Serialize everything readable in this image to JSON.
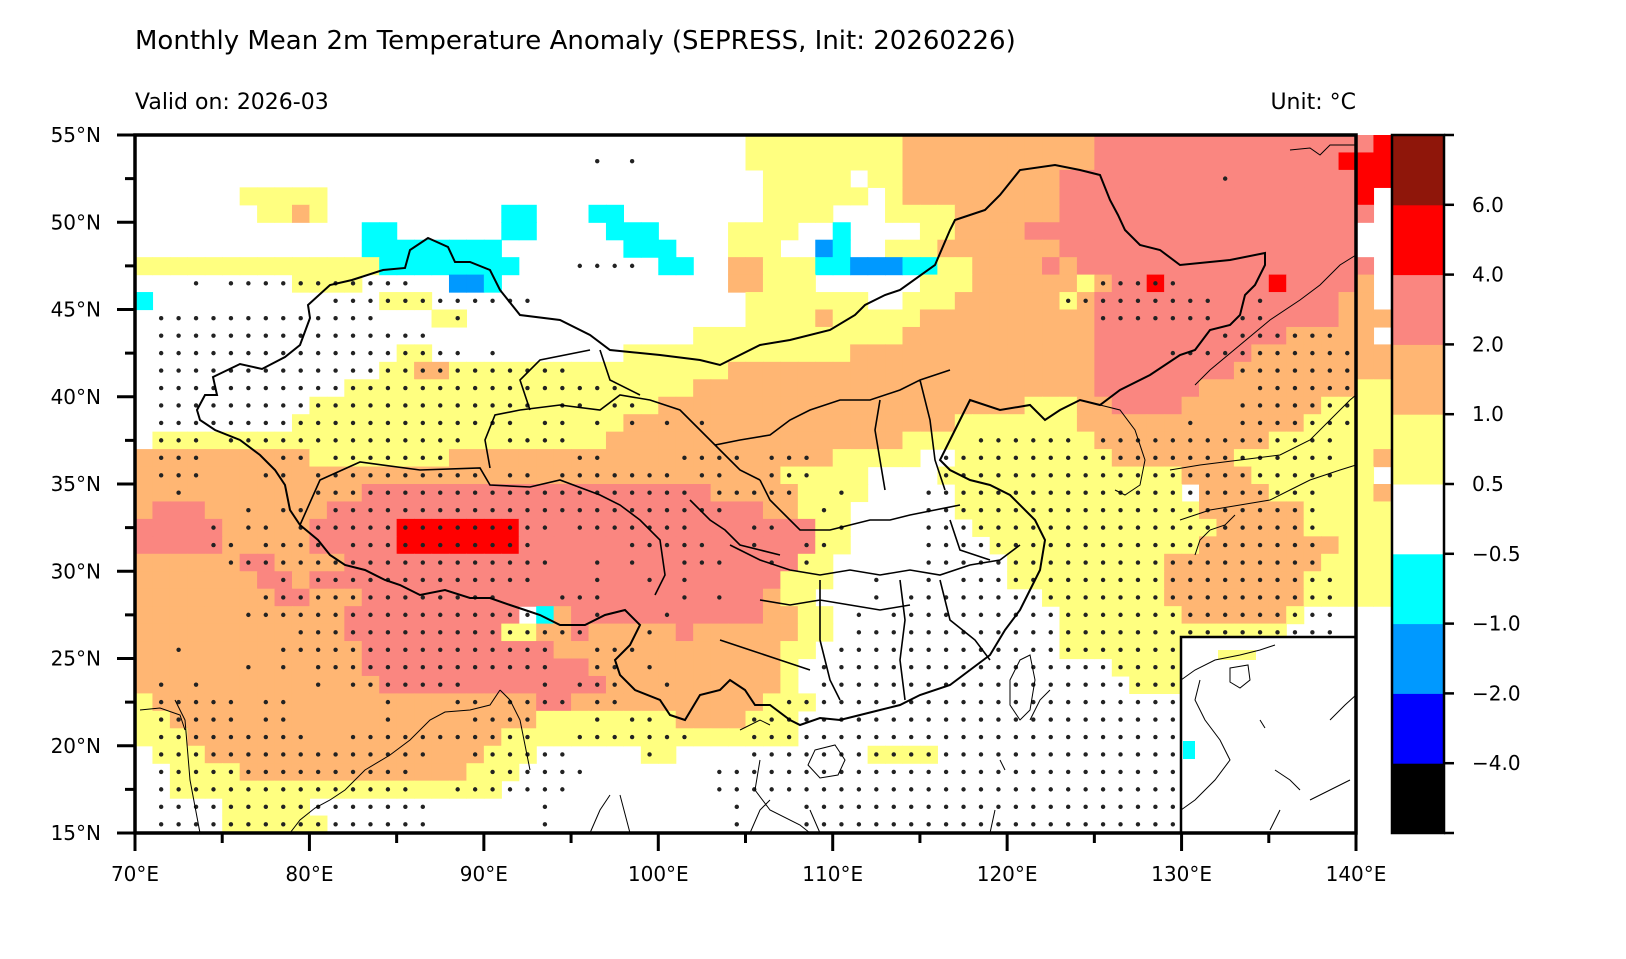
{
  "chart_data": {
    "type": "heatmap",
    "title": "Monthly Mean 2m Temperature Anomaly (SEPRESS, Init: 20260226)",
    "subtitle_left": "Valid on: 2026-03",
    "subtitle_right": "Unit: °C",
    "xlabel": "",
    "ylabel": "",
    "xlim": [
      70,
      140
    ],
    "ylim": [
      15,
      55
    ],
    "x_ticks": [
      70,
      80,
      90,
      100,
      110,
      120,
      130,
      140
    ],
    "x_tick_labels": [
      "70°E",
      "80°E",
      "90°E",
      "100°E",
      "110°E",
      "120°E",
      "130°E",
      "140°E"
    ],
    "y_ticks": [
      55,
      50,
      45,
      40,
      35,
      30,
      25,
      20,
      15
    ],
    "y_tick_labels": [
      "55°N",
      "50°N",
      "45°N",
      "40°N",
      "35°N",
      "30°N",
      "25°N",
      "20°N",
      "15°N"
    ],
    "grid": false,
    "colorbar": {
      "position": "right",
      "levels": [
        {
          "code": "k",
          "range": "< -4.0",
          "color": "#000000"
        },
        {
          "code": "n",
          "range": "-4.0 to -2.0",
          "color": "#0000ff"
        },
        {
          "code": "b",
          "range": "-2.0 to -1.0",
          "color": "#0099ff"
        },
        {
          "code": "c",
          "range": "-1.0 to -0.5",
          "color": "#00ffff"
        },
        {
          "code": "w",
          "range": "-0.5 to 0.5",
          "color": "#ffffff"
        },
        {
          "code": "y",
          "range": "0.5 to 1.0",
          "color": "#ffff80"
        },
        {
          "code": "o",
          "range": "1.0 to 2.0",
          "color": "#ffb673"
        },
        {
          "code": "p",
          "range": "2.0 to 4.0",
          "color": "#fa8680"
        },
        {
          "code": "r",
          "range": "4.0 to 6.0",
          "color": "#ff0000"
        },
        {
          "code": "d",
          "range": "> 6.0",
          "color": "#8f160a"
        }
      ],
      "tick_labels": [
        "−4.0",
        "−2.0",
        "−1.0",
        "−0.5",
        "0.5",
        "1.0",
        "2.0",
        "4.0",
        "6.0"
      ]
    },
    "grid_spec": {
      "lon_start": 70,
      "lat_start": 55,
      "step_deg": 1,
      "note": "rows from 55N southward, cols from 70E eastward; each char is a level code"
    },
    "cells": [
      "wwwwwwwwwwwwwwwwwwwwwwwwwwwwwwwwwwwyyyyyyyyyoooooooooooppppppppppppppppr",
      "wwwwwwwwwwwwwwwwwwwwwwwwwwwwwwwwwwwyyyyyyyyyooooooooooopppppppppppppprrr",
      "wwwwwwwwwwwwwwwwwwwwwwwwwwwwwwwwwwwwyyyyywyyoooooooooppppppppppppppppprr",
      "wwwwwwyyyyywwwwwwwwwwwwwwwwwwwwwwwwwyyyyyywyooooooooopppppppppppppppppr",
      "wwwwwwwyyoywwwwwwwwwwccwwwccwwwwwwwwyyyywwwyyyyoooooopppppppppppppppppp",
      "wwwwwwwwwwwwwccwwwwwwccwwwwcccwwwwyyyywwcwwwwyyooooppppppppppppppppppp",
      "wwwwwwwwwwwwwccccccccwwwwwwwcccwwwyyywwbcwwyyyoooooooppppppppppppppppp",
      "yyyyyyyyyyyyyyccccccccwwwwwwwwccwwooyyyccbbbccyyoooopoppppppppppppppppp",
      "wwwwwwwwwyyyywwwwwbbcwwwwwwwwwwwwwooyyywwwwwwyyyooooooyopprpppppprppppo",
      "cwwwwwwwwwwwwwyyywwwwwwwwwwwwwwwwwwyyyyyyywwyyyooooooyoppppppppppppppoo",
      "wwwwwwwwwwwwwwwwwyywwwwwwwwwwwwwwwwyyyyoyyyyyooooooooooppppppppppppppooo",
      "wwwwwwwwwwwwwwwwwwwwwwwwwwwwwwwwyyyyyyyyyyyyooooooooooopppppppppppooooo",
      "wwwwwwwwwwwwwwwyywwwwwwwwwwwyyyyyyyyyyyyyoooooooooooooopppppppppoooooooo",
      "wwwwwwwwwwwwwwyyooyyyyyyyyyyyyyyyyoooooooooooooooooooooppppppppooooooooo",
      "wwwwwwwwwwwwyyyyyyyyyyyyyyyyyyyyoooooooooooooooooooooooppppppoooooooooyy",
      "wwwwwwwwwwyyyyyyyyyyyyyyyyyyyyoooooooooooooooooooooyyyooppppooooooooyyyy",
      "wwwwwwwwwyyyyyyyyyyyyyyyyyyyoooooooooooooooooooyyyyyyyoooooooooooooyyyyy",
      "wyyyyyyyyyyyyyyyyyyyyyyyyyyoooooooooooooooooyyyyyyyyyyyooooooooooyyyyyyy",
      "ooooooooooyyyyyyyyooooooooooooooooooooooyyyyywwyyyyyyyyyoooooooyyyyyyyyo",
      "oooooooooooooooooooooooooooooooooooooyyyyywwwwyyyyyyyyyyyyyyooooyyyyyyy",
      "oooooooooooooppppppppppppppppppppoooooyyyywwwwwyyyyyyyyyyyyywooooyyyyyyo",
      "opppooooooopppppppppppppppppppppppppooyyywwwwwwyyyyyyyyyyyyyyooooooyyyyy",
      "pppppoooooppppprrrrrrrpppppppppppppppppyywwwwwwwyyyyyyyyyyyyyyoooooyyyyy",
      "pppppoooooppppprrrrrrrpppppppppppppppppyywwwwwwwwyyyyyyyyyyyyooooooooyyy",
      "ooooooppooooppppppppppppppppppppppppppyywwwwwwwwwwyyyyyyyyyoooooooooyyyy",
      "oooooooppopppppppppppppppppppppppppppyyywwwwwwwwwwyyyyyyyyyooooooooyyyyy",
      "ooooooooppooopppppppppppppppppppppppoyywwwwwwwwwwwwwyyyyyyyooooooooyyyyy",
      "ooooooooooooppppppppppwcopppppppppppooyywwwwwwwwwwwwwyyyyyyyooooooywwwww",
      "oooooooooooopppppppppyyoopooooopooooooyywwwwwwwwwwwwwyyyyyyyyyyyyywwwwww",
      "ooooooooooooopppppppppppoooooooooooooyywwwwwwwwwwwwwwyyyyyyyyyyywwwwwwww",
      "ooooooooooooopppppppppppppoooooooooooywwwwwwwwwwwwwwwwwwyyyyyyywwwwwwwww",
      "oooooooooooooopppppppppppppooooooooooywwwwwwwwwwwwwwwwwwwyyyywwwwwwwwwww",
      "yooooooooooooooooooooooppoooooooooooyyywwwwwwwwwwwwwwwwwwwwwwwwwwwwwwwww",
      "yyoooooooooooooooooooooyyyyyyyyooooyyywwwwwwwwwwwwwwwwwwwwwwwwwwwwwwwwww",
      "yyyooooooooooooooooooyyyyyyyyyyyyyyyyywwwwwwwwwwwwwwwwwwwwwwwwwwwwwwwwww",
      "wyyyooooooooooooooooyyywwwwwwyywwwwwwwwwwwyyyywwwwwwwwwwwwwwwwcwwwwwwwww",
      "wwyyyyoooooooooooooyyywwwwwwwwwwwwwwwwwwwwwwwwwwwwwwwwwwwwwwwwwwwwwwwwww",
      "wwyyyyyyyyyyyyyyyyyyywwwwwwwwwwwwwwwwwwwwwwwwwwwwwwwwwwwwwwwwwwwwwwwwwww",
      "wwwwwyyyyywwwwwwwwwwwwwwwwwwwwwwwwwwwwwwwwwwwwwwwwwwwwwwwwwwwwwwwwwwwwww",
      "wwwwwyyyyyywwwwwwwwwwwwwwwwwwwwwwwwwwwwwwwwwwwwwwwwwwwwwwwwwwwwwwwwwwwww"
    ],
    "stipple_note": "dots mark statistically significant grid points",
    "stipple": [
      "......................................................................",
      "..........................x.x.........................................",
      "..............................................................x.......",
      "......................................................................",
      "......................................................................",
      "......................................................................",
      "......................................................................",
      ".........................xxxx.........................................",
      "...x.xxxxxxxxxxx.......................................xxxxx..........",
      "...........xxxxxxxxxxxx..............................xxxxxxxxx..x......",
      ".xxxxxxxxxxxxx....x....................................xxxxxxx.xx......",
      ".xxxxxxxxxxxxxxxx.............................................xxxxxxx.",
      ".xxxxxxxxxxxxxxxxxx.x......................................xxxxxxxxxxx",
      ".xxxxxxxxxxxxxxxxxxxxxxxx......................................xxxxxxx",
      ".xxxxxxxxxxxxxxxxxxxxxxxxxxx....................................xxxxxx",
      ".xxxxxxxxxxxxxxxxxxxxxx.xx.xx..................................xxxxxxx",
      ".xxxxxxxxxxxxxxxxxxxxx.xx.x.x.x.x...........................x..xxxxxxx",
      ".xxx.xxxxxxxxxxxxxx..xxxx.......................xxxxxx.xxxxxxxxxxxxxx",
      ".xxx....xx.xxxxxxx.......xx....xxxx.xxx.......xxxxxxxxxxxxxxxxxxxxxxx",
      ".xxx...xx.xxxxxxxxxx.xx.xxxxxxx.xx..xxx.......xxxxxxxxxxxxxxxxxxxxxxx",
      "..x.......xxxxxxxxxxxxxxxxxxxxxx.xxxxx..x....xxxxxxxxxxxxxxxxxxxxxxx",
      "......x.xx.xxxxxxxxxxxxxxxxxxxxxxx.....x.....xxxxxxxxxxxxxxxxxxxxxxx",
      "....x.xx.xxxxxxxxxxxxxxx.xxxxxxx...xx...x....xxxxxxxxxxxxxxxxxxxxxxx",
      "....xx.xxxx.xxxxxxxxxxx.....xxxxx..x..xx.....xxxxxxxxxxxxxxxxxxxxxxx",
      ".....xxxxxxxxxxxxxxxxxxx..x.x..xxx..x.x......xxxxxxxxxxxxxxxxxxxxxxx",
      "........x.xxxxxxxxxxxxx...x..x.x..........x..x.xxxxxxxxxxxxxxxxxxxxxx",
      ".......xxxxxxxxxxxxxx...xxx....x.x........x.xxxxxxxxxxxxxxxxxxxxxxxxx",
      "......xxxxxxxxxxxxxxxxx...x...x..........x.xxxxxxxxxxxxxxxxxxxxxxxxxx",
      ".........xxxxxxxxxxxxxxxxx...x...........xxxxxxxxxxxxxxxxxxxxxxxxxxxx",
      "..x.....xxxxxxxxxxxxxxxx..xxx...........xxxxxxxxxxxxxxxxxxxxxxxxxxxxx",
      "......x.x.xxxxxxxxxxxxxx..xx.x.........xxxxxxxxxxxxxxxxxxxxxxxxxxxxxx",
      ".x.x......x.xxxxxxx....x.xxx..x........xxxxxxxxxxxxxxxxxxxxxxxxxxxx",
      ".xxxxx.xx.....x...xx.xxxx.xx.........xxxxxxxxxxxxxxxxxxxxxxxxxxxxxxx",
      ".xxxxx.xx.....x....xxxx...x.xx.....xxxxxxxxxxxxxxxxxxxxxxxxxxxxxxxxx",
      ".xxxxxxxxx..xxxxxxxxxxx..xxxxxxx...xxxxxxxxxxxxxxxxxxxxxxxxxxxxxxxxx",
      ".xxxxxxxxxxxxxxxx..xxxxxx....x.....xxxxxxxxxxxxxxxxxxxxxxxxxxxxxxxxx",
      ".xxxxxxxxxxxxxxx....xxxxxx.......xxxxxxxxxxxxxxxxxxxxxxxxxxxxxxxxxxx",
      ".xxxxxxxxxxxxxxx..xxxxxxx........xxxxxxxxxxxxxxxxxxxxxxxxxxxxxxxxxxx",
      ".xxxxxxxxxxxxxxxx......x..........x...xxxxxxxxxxxxxxxxxxxxxxxxxxxxxxx",
      ".xxxxxxxxxxxxxxxx......x..........x...xxxxxxxxxxxxxxxxxxxxxxxxxxxxxxx"
    ],
    "inset": {
      "label": "South China Sea inset",
      "lon_range": [
        105,
        125
      ],
      "lat_range": [
        2,
        24
      ]
    }
  }
}
